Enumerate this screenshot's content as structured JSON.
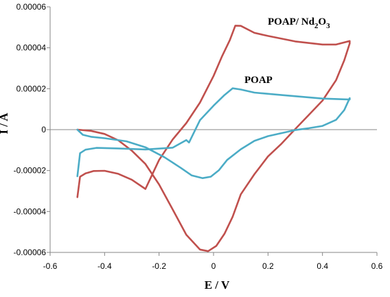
{
  "chart_data": {
    "type": "line",
    "title": "",
    "xlabel": "E / V",
    "ylabel": "I / A",
    "xlim": [
      -0.6,
      0.6
    ],
    "ylim": [
      -6e-05,
      6e-05
    ],
    "xticks": [
      -0.6,
      -0.4,
      -0.2,
      0,
      0.2,
      0.4,
      0.6
    ],
    "xtick_labels": [
      "-0.6",
      "-0.4",
      "-0.2",
      "0",
      "0.2",
      "0.4",
      "0.6"
    ],
    "yticks": [
      6e-05,
      4e-05,
      2e-05,
      0,
      -2e-05,
      -4e-05,
      -6e-05
    ],
    "ytick_labels": [
      "0.00006",
      "0.00004",
      "0.00002",
      "0",
      "-0.00002",
      "-0.00004",
      "-0.00006"
    ],
    "grid": false,
    "legend": "none",
    "annotations": [
      {
        "text": "POAP/  Nd",
        "sub": "2",
        "mid": "O",
        "sub2": "3",
        "series": "POAP/Nd2O3"
      },
      {
        "text": "POAP",
        "series": "POAP"
      }
    ],
    "series": [
      {
        "name": "POAP/ Nd2O3",
        "color": "#c0504d",
        "x": [
          -0.5,
          -0.49,
          -0.47,
          -0.44,
          -0.4,
          -0.35,
          -0.3,
          -0.25,
          -0.2,
          -0.15,
          -0.1,
          -0.05,
          0,
          0.03,
          0.06,
          0.08,
          0.1,
          0.15,
          0.2,
          0.3,
          0.4,
          0.45,
          0.5,
          0.5,
          0.48,
          0.45,
          0.4,
          0.35,
          0.3,
          0.25,
          0.2,
          0.15,
          0.1,
          0.07,
          0.04,
          0.01,
          -0.02,
          -0.05,
          -0.1,
          -0.15,
          -0.2,
          -0.25,
          -0.3,
          -0.35,
          -0.4,
          -0.45,
          -0.5
        ],
        "y": [
          -3.3e-05,
          -2.3e-05,
          -2.14e-05,
          -2.02e-05,
          -2.01e-05,
          -2.16e-05,
          -2.45e-05,
          -2.9e-05,
          -1.48e-05,
          -4.8e-06,
          3.2e-06,
          1.32e-05,
          2.62e-05,
          3.55e-05,
          4.38e-05,
          5.08e-05,
          5.07e-05,
          4.73e-05,
          4.58e-05,
          4.31e-05,
          4.16e-05,
          4.16e-05,
          4.33e-05,
          4.21e-05,
          3.39e-05,
          2.42e-05,
          1.42e-05,
          7.2e-06,
          3e-07,
          -6.8e-06,
          -1.31e-05,
          -2.18e-05,
          -3.16e-05,
          -4.26e-05,
          -5.09e-05,
          -5.68e-05,
          -5.94e-05,
          -5.86e-05,
          -5.14e-05,
          -3.9e-05,
          -2.68e-05,
          -1.68e-05,
          -1.03e-05,
          -5.2e-06,
          -2.1e-06,
          -6e-07,
          0.0
        ]
      },
      {
        "name": "POAP",
        "color": "#4bacc6",
        "x": [
          -0.5,
          -0.49,
          -0.47,
          -0.43,
          -0.35,
          -0.25,
          -0.15,
          -0.1,
          -0.09,
          -0.05,
          0,
          0.04,
          0.07,
          0.1,
          0.15,
          0.25,
          0.4,
          0.5,
          0.5,
          0.48,
          0.45,
          0.4,
          0.35,
          0.3,
          0.2,
          0.15,
          0.1,
          0.05,
          0.02,
          -0.01,
          -0.04,
          -0.08,
          -0.12,
          -0.18,
          -0.25,
          -0.32,
          -0.4,
          -0.45,
          -0.48,
          -0.5
        ],
        "y": [
          -2.28e-05,
          -1.15e-05,
          -9.8e-06,
          -8.9e-06,
          -9.2e-06,
          -9.7e-06,
          -8.8e-06,
          -5.1e-06,
          -6.3e-06,
          4.6e-06,
          1.17e-05,
          1.69e-05,
          2.02e-05,
          1.96e-05,
          1.81e-05,
          1.69e-05,
          1.52e-05,
          1.47e-05,
          1.54e-05,
          9.6e-06,
          4.8e-06,
          1.8e-06,
          7e-07,
          -2e-07,
          -3.2e-06,
          -5.5e-06,
          -9.6e-06,
          -1.48e-05,
          -1.98e-05,
          -2.3e-05,
          -2.37e-05,
          -2.24e-05,
          -1.87e-05,
          -1.35e-05,
          -8.6e-06,
          -5.7e-06,
          -4.2e-06,
          -3.5e-06,
          -2.5e-06,
          0.0
        ]
      }
    ]
  }
}
